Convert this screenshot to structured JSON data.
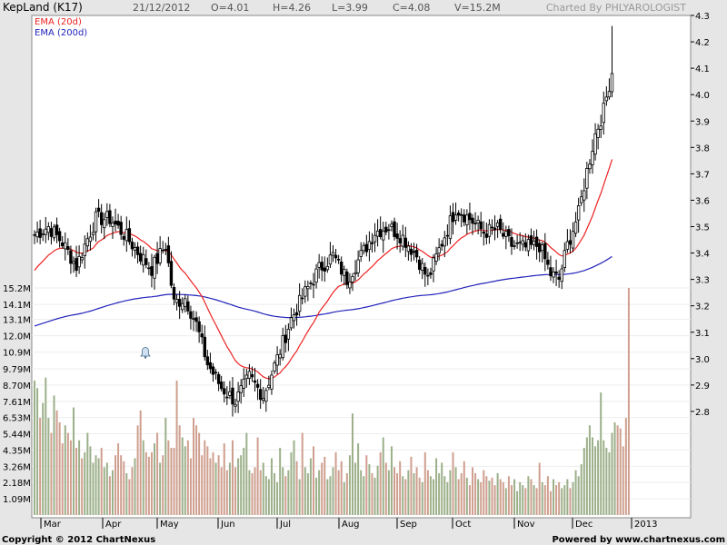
{
  "header": {
    "title": "KepLand (K17)",
    "date": "21/12/2012",
    "open": "O=4.01",
    "high": "H=4.26",
    "low": "L=3.99",
    "close": "C=4.08",
    "volume": "V=15.2M",
    "charted_by": "Charted By PHLYAROLOGIST"
  },
  "footer": {
    "copyright": "Copyright © 2012 ChartNexus",
    "powered": "Powered by www.chartnexus.com"
  },
  "colors": {
    "background": "#e6e6e6",
    "plot_bg": "#ffffff",
    "ema20": "#ee2222",
    "ema200": "#2222bb",
    "vol_up": "#9cb08a",
    "vol_down": "#cf9f8f",
    "candle": "#000000"
  },
  "chart_data": {
    "type": "candlestick",
    "legend": [
      "EMA (20d)",
      "EMA (200d)"
    ],
    "price_ticks": [
      "4.3",
      "4.2",
      "4.1",
      "4.0",
      "3.9",
      "3.8",
      "3.7",
      "3.6",
      "3.5",
      "3.4",
      "3.3",
      "3.2",
      "3.1",
      "3.0",
      "2.9",
      "2.8"
    ],
    "volume_ticks": [
      "15.2M",
      "14.1M",
      "13.1M",
      "12.0M",
      "10.9M",
      "9.79M",
      "8.70M",
      "7.61M",
      "6.53M",
      "5.44M",
      "4.35M",
      "3.26M",
      "2.18M",
      "1.09M"
    ],
    "x_labels": [
      "Mar",
      "Apr",
      "May",
      "Jun",
      "Jul",
      "Aug",
      "Sep",
      "Oct",
      "Nov",
      "Dec",
      "2013"
    ],
    "price_range": [
      2.7,
      4.3
    ],
    "volume_range": [
      0,
      15.2
    ],
    "price_anchors": [
      [
        0,
        3.47
      ],
      [
        5,
        3.5
      ],
      [
        10,
        3.44
      ],
      [
        15,
        3.35
      ],
      [
        18,
        3.43
      ],
      [
        22,
        3.53
      ],
      [
        27,
        3.53
      ],
      [
        33,
        3.46
      ],
      [
        38,
        3.39
      ],
      [
        42,
        3.34
      ],
      [
        47,
        3.43
      ],
      [
        50,
        3.21
      ],
      [
        54,
        3.23
      ],
      [
        58,
        3.13
      ],
      [
        62,
        2.98
      ],
      [
        67,
        2.89
      ],
      [
        72,
        2.84
      ],
      [
        77,
        2.93
      ],
      [
        82,
        2.86
      ],
      [
        87,
        3.0
      ],
      [
        92,
        3.15
      ],
      [
        97,
        3.25
      ],
      [
        102,
        3.34
      ],
      [
        107,
        3.39
      ],
      [
        112,
        3.3
      ],
      [
        117,
        3.39
      ],
      [
        122,
        3.48
      ],
      [
        127,
        3.5
      ],
      [
        132,
        3.46
      ],
      [
        137,
        3.39
      ],
      [
        141,
        3.3
      ],
      [
        146,
        3.44
      ],
      [
        151,
        3.57
      ],
      [
        156,
        3.53
      ],
      [
        161,
        3.48
      ],
      [
        166,
        3.49
      ],
      [
        171,
        3.43
      ],
      [
        176,
        3.42
      ],
      [
        181,
        3.43
      ],
      [
        185,
        3.32
      ],
      [
        188,
        3.3
      ],
      [
        191,
        3.43
      ],
      [
        195,
        3.55
      ],
      [
        198,
        3.71
      ],
      [
        201,
        3.85
      ],
      [
        204,
        3.94
      ],
      [
        206,
        4.04
      ],
      [
        207,
        4.08
      ]
    ],
    "volume_values_M": [
      9.0,
      8.5,
      6.5,
      7.5,
      9.2,
      6.5,
      5.5,
      8.0,
      7.0,
      6.2,
      4.8,
      6.0,
      5.5,
      5.0,
      7.2,
      4.5,
      5.0,
      3.8,
      4.2,
      5.5,
      4.6,
      3.5,
      4.0,
      3.8,
      4.5,
      3.2,
      3.5,
      2.6,
      3.0,
      4.0,
      4.8,
      4.0,
      3.6,
      2.8,
      2.4,
      3.2,
      3.8,
      6.0,
      7.0,
      5.0,
      4.2,
      3.9,
      4.2,
      4.8,
      5.5,
      3.5,
      4.0,
      6.5,
      5.0,
      4.5,
      4.5,
      9.0,
      6.0,
      5.2,
      4.6,
      5.0,
      3.8,
      6.5,
      6.0,
      5.5,
      4.0,
      5.0,
      4.6,
      3.8,
      4.2,
      3.5,
      4.0,
      3.2,
      4.8,
      3.0,
      3.5,
      5.0,
      3.2,
      3.8,
      4.0,
      4.5,
      5.5,
      3.0,
      2.8,
      3.2,
      5.2,
      3.0,
      3.5,
      2.6,
      2.4,
      3.8,
      2.8,
      2.2,
      4.5,
      3.2,
      2.6,
      3.0,
      4.2,
      5.0,
      3.6,
      2.4,
      5.5,
      3.2,
      2.8,
      3.8,
      4.6,
      2.5,
      3.0,
      3.5,
      3.9,
      2.4,
      2.6,
      3.2,
      4.2,
      3.0,
      3.6,
      2.2,
      2.8,
      4.0,
      6.8,
      3.5,
      4.8,
      3.0,
      2.6,
      4.0,
      3.4,
      2.8,
      2.5,
      3.3,
      4.2,
      5.2,
      3.5,
      3.0,
      4.6,
      3.2,
      2.8,
      3.6,
      2.6,
      2.4,
      3.0,
      3.9,
      2.8,
      3.2,
      2.5,
      2.2,
      4.2,
      3.0,
      2.6,
      2.4,
      3.8,
      2.8,
      3.5,
      2.6,
      2.2,
      3.0,
      4.2,
      3.2,
      2.4,
      2.8,
      3.6,
      2.5,
      2.0,
      3.2,
      2.8,
      2.4,
      2.2,
      3.0,
      2.6,
      2.3,
      2.5,
      2.0,
      2.8,
      2.4,
      2.2,
      1.8,
      2.6,
      2.0,
      2.4,
      1.6,
      2.2,
      2.0,
      1.8,
      2.6,
      2.4,
      2.0,
      1.8,
      3.5,
      2.2,
      2.0,
      2.6,
      1.6,
      2.4,
      2.0,
      2.2,
      1.8,
      2.0,
      2.4,
      1.8,
      2.2,
      3.0,
      2.6,
      3.4,
      4.5,
      5.2,
      6.0,
      5.2,
      4.6,
      5.0,
      8.2,
      5.0,
      4.5,
      4.2,
      5.5,
      6.2,
      6.0,
      5.8,
      4.6,
      6.5,
      15.2
    ]
  }
}
